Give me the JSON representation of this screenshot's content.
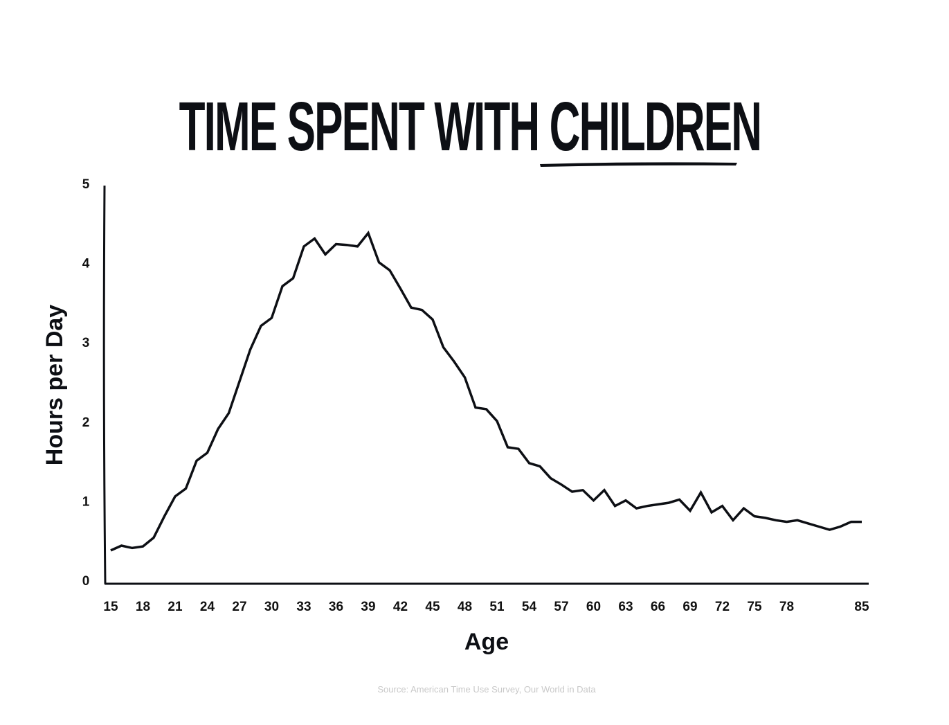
{
  "chart_data": {
    "type": "line",
    "title_parts": [
      "TIME SPENT WITH ",
      "CHILDREN"
    ],
    "xlabel": "Age",
    "ylabel": "Hours per Day",
    "xlim": [
      15,
      85
    ],
    "ylim": [
      0,
      5
    ],
    "xticks": [
      15,
      18,
      21,
      24,
      27,
      30,
      33,
      36,
      39,
      42,
      45,
      48,
      51,
      54,
      57,
      60,
      63,
      66,
      69,
      72,
      75,
      78,
      85
    ],
    "yticks": [
      0,
      1,
      2,
      3,
      4,
      5
    ],
    "grid": false,
    "series": [
      {
        "name": "Time spent with children",
        "x": [
          15,
          16,
          17,
          18,
          19,
          20,
          21,
          22,
          23,
          24,
          25,
          26,
          27,
          28,
          29,
          30,
          31,
          32,
          33,
          34,
          35,
          36,
          37,
          38,
          39,
          40,
          41,
          42,
          43,
          44,
          45,
          46,
          47,
          48,
          49,
          50,
          51,
          52,
          53,
          54,
          55,
          56,
          57,
          58,
          59,
          60,
          61,
          62,
          63,
          64,
          65,
          66,
          67,
          68,
          69,
          70,
          71,
          72,
          73,
          74,
          75,
          76,
          77,
          78,
          79,
          80,
          81,
          82,
          83,
          84,
          85
        ],
        "values": [
          0.42,
          0.48,
          0.45,
          0.47,
          0.58,
          0.85,
          1.1,
          1.2,
          1.55,
          1.65,
          1.95,
          2.15,
          2.55,
          2.95,
          3.25,
          3.35,
          3.75,
          3.85,
          4.25,
          4.35,
          4.15,
          4.28,
          4.27,
          4.25,
          4.42,
          4.05,
          3.95,
          3.72,
          3.48,
          3.45,
          3.33,
          2.98,
          2.8,
          2.6,
          2.22,
          2.2,
          2.05,
          1.72,
          1.7,
          1.52,
          1.48,
          1.33,
          1.25,
          1.16,
          1.18,
          1.05,
          1.18,
          0.98,
          1.05,
          0.95,
          0.98,
          1.0,
          1.02,
          1.06,
          0.92,
          1.15,
          0.9,
          0.98,
          0.8,
          0.95,
          0.85,
          0.83,
          0.8,
          0.78,
          0.8,
          0.76,
          0.72,
          0.68,
          0.72,
          0.78,
          0.78
        ]
      }
    ]
  },
  "source": "Source: American Time Use Survey, Our World in Data"
}
